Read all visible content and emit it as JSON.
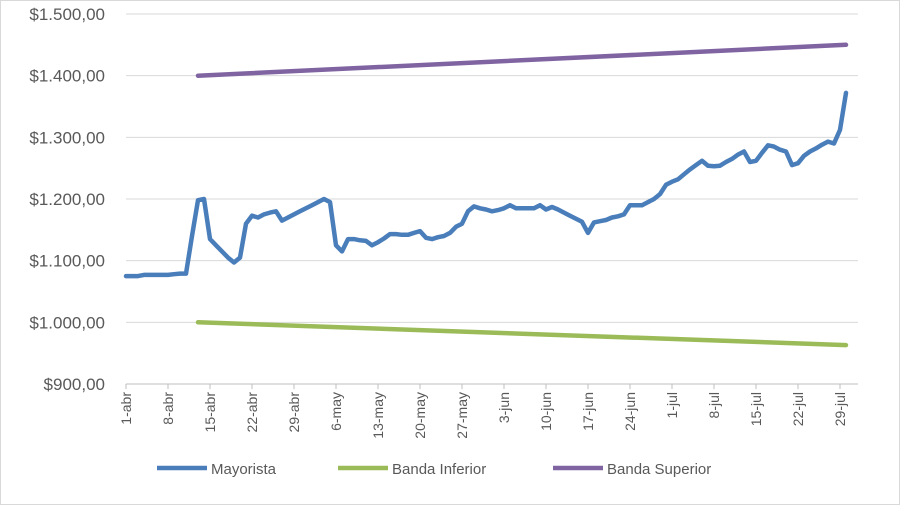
{
  "chart_data": {
    "type": "line",
    "title": "",
    "xlabel": "",
    "ylabel": "",
    "ylim": [
      900,
      1500
    ],
    "y_ticks": [
      900,
      1000,
      1100,
      1200,
      1300,
      1400,
      1500
    ],
    "y_tick_labels": [
      "$900,00",
      "$1.000,00",
      "$1.100,00",
      "$1.200,00",
      "$1.300,00",
      "$1.400,00",
      "$1.500,00"
    ],
    "x_range_days": [
      0,
      122
    ],
    "x_ticks": [
      {
        "day": 0,
        "label": "1-abr"
      },
      {
        "day": 7,
        "label": "8-abr"
      },
      {
        "day": 14,
        "label": "15-abr"
      },
      {
        "day": 21,
        "label": "22-abr"
      },
      {
        "day": 28,
        "label": "29-abr"
      },
      {
        "day": 35,
        "label": "6-may"
      },
      {
        "day": 42,
        "label": "13-may"
      },
      {
        "day": 49,
        "label": "20-may"
      },
      {
        "day": 56,
        "label": "27-may"
      },
      {
        "day": 63,
        "label": "3-jun"
      },
      {
        "day": 70,
        "label": "10-jun"
      },
      {
        "day": 77,
        "label": "17-jun"
      },
      {
        "day": 84,
        "label": "24-jun"
      },
      {
        "day": 91,
        "label": "1-jul"
      },
      {
        "day": 98,
        "label": "8-jul"
      },
      {
        "day": 105,
        "label": "15-jul"
      },
      {
        "day": 112,
        "label": "22-jul"
      },
      {
        "day": 119,
        "label": "29-jul"
      }
    ],
    "grid": true,
    "legend_position": "bottom",
    "series": [
      {
        "name": "Mayorista",
        "color": "#4a7ebb",
        "points": [
          [
            0,
            1075
          ],
          [
            1,
            1075
          ],
          [
            2,
            1075
          ],
          [
            3,
            1077
          ],
          [
            4,
            1077
          ],
          [
            5,
            1077
          ],
          [
            6,
            1077
          ],
          [
            7,
            1077
          ],
          [
            8,
            1078
          ],
          [
            9,
            1079
          ],
          [
            10,
            1079
          ],
          [
            11,
            1140
          ],
          [
            12,
            1198
          ],
          [
            13,
            1200
          ],
          [
            14,
            1135
          ],
          [
            15,
            1125
          ],
          [
            16,
            1115
          ],
          [
            17,
            1105
          ],
          [
            18,
            1097
          ],
          [
            19,
            1105
          ],
          [
            20,
            1160
          ],
          [
            21,
            1173
          ],
          [
            22,
            1170
          ],
          [
            23,
            1175
          ],
          [
            24,
            1178
          ],
          [
            25,
            1180
          ],
          [
            26,
            1165
          ],
          [
            27,
            1170
          ],
          [
            28,
            1175
          ],
          [
            29,
            1180
          ],
          [
            30,
            1185
          ],
          [
            31,
            1190
          ],
          [
            32,
            1195
          ],
          [
            33,
            1200
          ],
          [
            34,
            1195
          ],
          [
            35,
            1125
          ],
          [
            36,
            1115
          ],
          [
            37,
            1135
          ],
          [
            38,
            1135
          ],
          [
            39,
            1133
          ],
          [
            40,
            1132
          ],
          [
            41,
            1125
          ],
          [
            42,
            1130
          ],
          [
            43,
            1136
          ],
          [
            44,
            1143
          ],
          [
            45,
            1143
          ],
          [
            46,
            1142
          ],
          [
            47,
            1142
          ],
          [
            48,
            1145
          ],
          [
            49,
            1148
          ],
          [
            50,
            1137
          ],
          [
            51,
            1135
          ],
          [
            52,
            1138
          ],
          [
            53,
            1140
          ],
          [
            54,
            1145
          ],
          [
            55,
            1155
          ],
          [
            56,
            1160
          ],
          [
            57,
            1180
          ],
          [
            58,
            1188
          ],
          [
            59,
            1185
          ],
          [
            60,
            1183
          ],
          [
            61,
            1180
          ],
          [
            62,
            1182
          ],
          [
            63,
            1185
          ],
          [
            64,
            1190
          ],
          [
            65,
            1185
          ],
          [
            66,
            1185
          ],
          [
            67,
            1185
          ],
          [
            68,
            1185
          ],
          [
            69,
            1190
          ],
          [
            70,
            1183
          ],
          [
            71,
            1187
          ],
          [
            72,
            1183
          ],
          [
            73,
            1178
          ],
          [
            74,
            1173
          ],
          [
            75,
            1168
          ],
          [
            76,
            1163
          ],
          [
            77,
            1145
          ],
          [
            78,
            1162
          ],
          [
            79,
            1164
          ],
          [
            80,
            1166
          ],
          [
            81,
            1170
          ],
          [
            82,
            1172
          ],
          [
            83,
            1175
          ],
          [
            84,
            1190
          ],
          [
            85,
            1190
          ],
          [
            86,
            1190
          ],
          [
            87,
            1195
          ],
          [
            88,
            1200
          ],
          [
            89,
            1208
          ],
          [
            90,
            1223
          ],
          [
            91,
            1228
          ],
          [
            92,
            1232
          ],
          [
            93,
            1240
          ],
          [
            94,
            1248
          ],
          [
            95,
            1255
          ],
          [
            96,
            1262
          ],
          [
            97,
            1254
          ],
          [
            98,
            1253
          ],
          [
            99,
            1254
          ],
          [
            100,
            1260
          ],
          [
            101,
            1265
          ],
          [
            102,
            1272
          ],
          [
            103,
            1277
          ],
          [
            104,
            1260
          ],
          [
            105,
            1262
          ],
          [
            106,
            1275
          ],
          [
            107,
            1287
          ],
          [
            108,
            1285
          ],
          [
            109,
            1280
          ],
          [
            110,
            1277
          ],
          [
            111,
            1255
          ],
          [
            112,
            1258
          ],
          [
            113,
            1270
          ],
          [
            114,
            1277
          ],
          [
            115,
            1282
          ],
          [
            116,
            1288
          ],
          [
            117,
            1293
          ],
          [
            118,
            1290
          ],
          [
            119,
            1312
          ],
          [
            120,
            1372
          ]
        ]
      },
      {
        "name": "Banda Inferior",
        "color": "#9bbb59",
        "points": [
          [
            12,
            1000
          ],
          [
            120,
            963
          ]
        ]
      },
      {
        "name": "Banda Superior",
        "color": "#8064a2",
        "points": [
          [
            12,
            1400
          ],
          [
            120,
            1450
          ]
        ]
      }
    ]
  }
}
